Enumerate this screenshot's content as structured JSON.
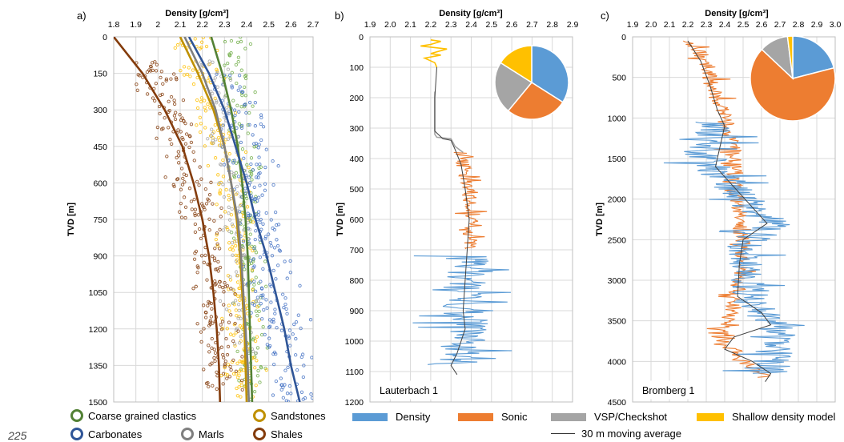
{
  "page_number": "225",
  "legend_a": [
    {
      "label": "Coarse grained clastics",
      "color": "#538135"
    },
    {
      "label": "Sandstones",
      "color": "#BF9000"
    },
    {
      "label": "Carbonates",
      "color": "#2F5597"
    },
    {
      "label": "Marls",
      "color": "#7F7F7F"
    },
    {
      "label": "Shales",
      "color": "#843C0C"
    }
  ],
  "legend_bc": {
    "density": {
      "label": "Density",
      "color": "#5B9BD5"
    },
    "sonic": {
      "label": "Sonic",
      "color": "#ED7D31"
    },
    "vsp": {
      "label": "VSP/Checkshot",
      "color": "#A5A5A5"
    },
    "shallow": {
      "label": "Shallow density model",
      "color": "#FFC000"
    },
    "moving_average": {
      "label": "30 m moving average",
      "color": "#404040"
    }
  },
  "chart_data": [
    {
      "panel": "a)",
      "type": "scatter",
      "xlabel": "Density [g/cm³]",
      "ylabel": "TVD [m]",
      "xlim": [
        1.8,
        2.7
      ],
      "ylim": [
        1500,
        0
      ],
      "x_ticks": [
        "1.8",
        "1.9",
        "2",
        "2.1",
        "2.2",
        "2.3",
        "2.4",
        "2.5",
        "2.6",
        "2.7"
      ],
      "y_ticks": [
        "0",
        "150",
        "300",
        "450",
        "600",
        "750",
        "900",
        "1050",
        "1200",
        "1350",
        "1500"
      ],
      "grid": true,
      "trend_curves": [
        {
          "name": "Coarse grained clastics",
          "color": "#538135",
          "points": [
            [
              2.24,
              0
            ],
            [
              2.29,
              150
            ],
            [
              2.33,
              300
            ],
            [
              2.36,
              450
            ],
            [
              2.38,
              600
            ],
            [
              2.395,
              750
            ],
            [
              2.405,
              900
            ],
            [
              2.41,
              1050
            ],
            [
              2.415,
              1200
            ],
            [
              2.42,
              1350
            ],
            [
              2.425,
              1500
            ]
          ]
        },
        {
          "name": "Sandstones",
          "color": "#BF9000",
          "points": [
            [
              2.1,
              0
            ],
            [
              2.18,
              150
            ],
            [
              2.25,
              300
            ],
            [
              2.3,
              450
            ],
            [
              2.33,
              600
            ],
            [
              2.355,
              750
            ],
            [
              2.37,
              900
            ],
            [
              2.38,
              1050
            ],
            [
              2.39,
              1200
            ],
            [
              2.395,
              1350
            ],
            [
              2.4,
              1500
            ]
          ]
        },
        {
          "name": "Carbonates",
          "color": "#2F5597",
          "points": [
            [
              2.14,
              0
            ],
            [
              2.23,
              150
            ],
            [
              2.3,
              300
            ],
            [
              2.35,
              450
            ],
            [
              2.4,
              600
            ],
            [
              2.44,
              750
            ],
            [
              2.49,
              900
            ],
            [
              2.53,
              1050
            ],
            [
              2.57,
              1200
            ],
            [
              2.6,
              1350
            ],
            [
              2.64,
              1500
            ]
          ]
        },
        {
          "name": "Marls",
          "color": "#7F7F7F",
          "points": [
            [
              2.12,
              0
            ],
            [
              2.2,
              150
            ],
            [
              2.26,
              300
            ],
            [
              2.3,
              450
            ],
            [
              2.33,
              600
            ],
            [
              2.36,
              750
            ],
            [
              2.375,
              900
            ],
            [
              2.385,
              1050
            ],
            [
              2.395,
              1200
            ],
            [
              2.405,
              1350
            ],
            [
              2.41,
              1500
            ]
          ]
        },
        {
          "name": "Shales",
          "color": "#843C0C",
          "points": [
            [
              1.8,
              0
            ],
            [
              1.93,
              150
            ],
            [
              2.03,
              300
            ],
            [
              2.11,
              450
            ],
            [
              2.16,
              600
            ],
            [
              2.2,
              750
            ],
            [
              2.23,
              900
            ],
            [
              2.25,
              1050
            ],
            [
              2.265,
              1200
            ],
            [
              2.275,
              1350
            ],
            [
              2.28,
              1500
            ]
          ]
        }
      ],
      "scatter_clouds": [
        {
          "name": "Coarse grained clastics",
          "color": "#70AD47",
          "center": [
            [
              2.35,
              0
            ],
            [
              2.38,
              300
            ],
            [
              2.4,
              600
            ],
            [
              2.41,
              900
            ],
            [
              2.42,
              1200
            ],
            [
              2.43,
              1500
            ]
          ],
          "spread_x": 0.06,
          "count": 180
        },
        {
          "name": "Sandstones",
          "color": "#FFC000",
          "center": [
            [
              2.15,
              0
            ],
            [
              2.25,
              300
            ],
            [
              2.33,
              600
            ],
            [
              2.36,
              900
            ],
            [
              2.38,
              1200
            ],
            [
              2.4,
              1500
            ]
          ],
          "spread_x": 0.08,
          "count": 240
        },
        {
          "name": "Carbonates",
          "color": "#4472C4",
          "center": [
            [
              2.3,
              150
            ],
            [
              2.4,
              450
            ],
            [
              2.45,
              750
            ],
            [
              2.52,
              1050
            ],
            [
              2.58,
              1250
            ],
            [
              2.64,
              1500
            ]
          ],
          "spread_x": 0.1,
          "count": 260
        },
        {
          "name": "Marls",
          "color": "#A5A5A5",
          "center": [
            [
              2.25,
              100
            ],
            [
              2.3,
              400
            ],
            [
              2.34,
              700
            ],
            [
              2.37,
              1000
            ],
            [
              2.39,
              1300
            ]
          ],
          "spread_x": 0.07,
          "count": 120
        },
        {
          "name": "Shales",
          "color": "#843C0C",
          "center": [
            [
              1.95,
              100
            ],
            [
              2.05,
              300
            ],
            [
              2.15,
              550
            ],
            [
              2.22,
              850
            ],
            [
              2.27,
              1150
            ],
            [
              2.3,
              1450
            ]
          ],
          "spread_x": 0.09,
          "count": 260
        }
      ]
    },
    {
      "panel": "b)",
      "type": "line",
      "annotation": "Lauterbach 1",
      "xlabel": "Density [g/cm³]",
      "ylabel": "TVD [m]",
      "xlim": [
        1.9,
        2.9
      ],
      "ylim": [
        1200,
        0
      ],
      "x_ticks": [
        "1.9",
        "2.0",
        "2.1",
        "2.2",
        "2.3",
        "2.4",
        "2.5",
        "2.6",
        "2.7",
        "2.8",
        "2.9"
      ],
      "y_ticks": [
        "0",
        "100",
        "200",
        "300",
        "400",
        "500",
        "600",
        "700",
        "800",
        "900",
        "1000",
        "1100",
        "1200"
      ],
      "grid": true,
      "series": [
        {
          "name": "Shallow density model",
          "color": "#FFC000",
          "points": [
            [
              2.2,
              10
            ],
            [
              2.25,
              15
            ],
            [
              2.2,
              25
            ],
            [
              2.15,
              30
            ],
            [
              2.28,
              40
            ],
            [
              2.2,
              55
            ],
            [
              2.25,
              60
            ],
            [
              2.17,
              70
            ],
            [
              2.22,
              85
            ],
            [
              2.23,
              100
            ]
          ]
        },
        {
          "name": "VSP/Checkshot",
          "color": "#A5A5A5",
          "points": [
            [
              2.22,
              180
            ],
            [
              2.22,
              320
            ],
            [
              2.23,
              330
            ],
            [
              2.3,
              335
            ],
            [
              2.32,
              360
            ],
            [
              2.36,
              380
            ]
          ]
        },
        {
          "name": "Sonic",
          "color": "#ED7D31",
          "depth_range": [
            370,
            700
          ],
          "center": [
            [
              2.35,
              380
            ],
            [
              2.37,
              450
            ],
            [
              2.39,
              520
            ],
            [
              2.4,
              600
            ],
            [
              2.39,
              700
            ]
          ],
          "amplitude": 0.04
        },
        {
          "name": "Density",
          "color": "#5B9BD5",
          "depth_range": [
            700,
            1100
          ],
          "center": [
            [
              2.38,
              720
            ],
            [
              2.37,
              800
            ],
            [
              2.36,
              880
            ],
            [
              2.38,
              960
            ],
            [
              2.34,
              1040
            ],
            [
              2.26,
              1080
            ]
          ],
          "amplitude": 0.12
        },
        {
          "name": "30 m moving average",
          "color": "#404040",
          "points": [
            [
              2.23,
              100
            ],
            [
              2.22,
              200
            ],
            [
              2.22,
              310
            ],
            [
              2.26,
              335
            ],
            [
              2.3,
              340
            ],
            [
              2.32,
              370
            ],
            [
              2.35,
              420
            ],
            [
              2.37,
              500
            ],
            [
              2.39,
              600
            ],
            [
              2.38,
              700
            ],
            [
              2.37,
              800
            ],
            [
              2.36,
              900
            ],
            [
              2.37,
              960
            ],
            [
              2.33,
              1040
            ],
            [
              2.3,
              1080
            ],
            [
              2.33,
              1110
            ]
          ]
        }
      ],
      "pie": [
        {
          "name": "Density",
          "color": "#5B9BD5",
          "value": 34
        },
        {
          "name": "Sonic",
          "color": "#ED7D31",
          "value": 27
        },
        {
          "name": "VSP/Checkshot",
          "color": "#A5A5A5",
          "value": 23
        },
        {
          "name": "Shallow density model",
          "color": "#FFC000",
          "value": 16
        }
      ]
    },
    {
      "panel": "c)",
      "type": "line",
      "annotation": "Bromberg 1",
      "xlabel": "Density [g/cm³]",
      "ylabel": "TVD [m]",
      "xlim": [
        1.9,
        3.0
      ],
      "ylim": [
        4500,
        0
      ],
      "x_ticks": [
        "1.9",
        "2.0",
        "2.1",
        "2.2",
        "2.3",
        "2.4",
        "2.5",
        "2.6",
        "2.7",
        "2.8",
        "2.9",
        "3.0"
      ],
      "y_ticks": [
        "0",
        "500",
        "1000",
        "1500",
        "2000",
        "2500",
        "3000",
        "3500",
        "4000",
        "4500"
      ],
      "grid": true,
      "series": [
        {
          "name": "Sonic",
          "color": "#ED7D31",
          "center": [
            [
              2.22,
              50
            ],
            [
              2.3,
              300
            ],
            [
              2.35,
              700
            ],
            [
              2.4,
              1000
            ],
            [
              2.44,
              1300
            ],
            [
              2.47,
              2000
            ],
            [
              2.5,
              2600
            ],
            [
              2.48,
              3000
            ],
            [
              2.45,
              3300
            ],
            [
              2.38,
              3700
            ],
            [
              2.5,
              4000
            ],
            [
              2.62,
              4200
            ]
          ],
          "amplitude": 0.05
        },
        {
          "name": "Density",
          "color": "#5B9BD5",
          "center": [
            [
              2.35,
              1050
            ],
            [
              2.3,
              1500
            ],
            [
              2.38,
              1700
            ],
            [
              2.5,
              2000
            ],
            [
              2.65,
              2300
            ],
            [
              2.55,
              2500
            ],
            [
              2.48,
              2700
            ],
            [
              2.58,
              3350
            ],
            [
              2.68,
              3600
            ],
            [
              2.65,
              4150
            ]
          ],
          "amplitude": 0.12
        },
        {
          "name": "30 m moving average",
          "color": "#404040",
          "points": [
            [
              2.2,
              50
            ],
            [
              2.27,
              300
            ],
            [
              2.32,
              600
            ],
            [
              2.36,
              900
            ],
            [
              2.4,
              1100
            ],
            [
              2.37,
              1400
            ],
            [
              2.35,
              1600
            ],
            [
              2.43,
              1800
            ],
            [
              2.55,
              2100
            ],
            [
              2.63,
              2300
            ],
            [
              2.5,
              2500
            ],
            [
              2.48,
              2800
            ],
            [
              2.47,
              3200
            ],
            [
              2.6,
              3400
            ],
            [
              2.65,
              3550
            ],
            [
              2.45,
              3700
            ],
            [
              2.4,
              3850
            ],
            [
              2.55,
              4000
            ],
            [
              2.65,
              4150
            ],
            [
              2.62,
              4250
            ]
          ]
        }
      ],
      "pie": [
        {
          "name": "Density",
          "color": "#5B9BD5",
          "value": 21
        },
        {
          "name": "Sonic",
          "color": "#ED7D31",
          "value": 66
        },
        {
          "name": "VSP/Checkshot",
          "color": "#A5A5A5",
          "value": 11
        },
        {
          "name": "Shallow density model",
          "color": "#FFC000",
          "value": 2
        }
      ]
    }
  ]
}
